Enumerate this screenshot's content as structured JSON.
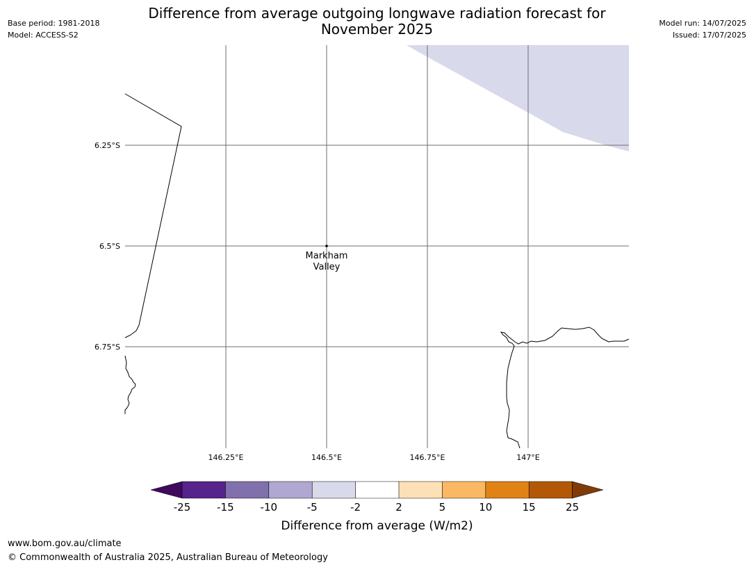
{
  "title": {
    "line1": "Difference from average outgoing longwave radiation forecast for",
    "line2": "November 2025"
  },
  "meta_left": {
    "base_period": "Base period: 1981-2018",
    "model": "Model: ACCESS-S2"
  },
  "meta_right": {
    "model_run": "Model run: 14/07/2025",
    "issued": "Issued: 17/07/2025"
  },
  "map": {
    "lat_labels": [
      "6.25°S",
      "6.5°S",
      "6.75°S"
    ],
    "lon_labels": [
      "146.25°E",
      "146.5°E",
      "146.75°E",
      "147°E"
    ],
    "place": {
      "name_line1": "Markham",
      "name_line2": "Valley"
    },
    "shaded_region_color": "#d8d9ea",
    "shaded_region_class": "-5 to -2"
  },
  "colorbar": {
    "labels": [
      "-25",
      "-15",
      "-10",
      "-5",
      "-2",
      "2",
      "5",
      "10",
      "15",
      "25"
    ],
    "colors": [
      "#3f0a5e",
      "#56228c",
      "#8070ac",
      "#b1a8d1",
      "#d8d9ea",
      "#ffffff",
      "#fde0b6",
      "#fbb863",
      "#e08214",
      "#b35806",
      "#7f3b08"
    ],
    "label": "Difference from average (W/m2)"
  },
  "footer": {
    "url": "www.bom.gov.au/climate",
    "copyright": "© Commonwealth of Australia 2025, Australian Bureau of Meteorology"
  }
}
